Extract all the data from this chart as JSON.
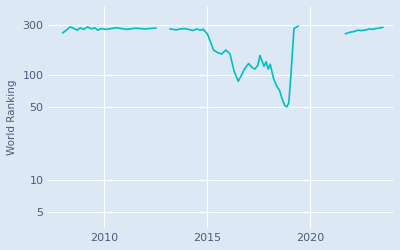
{
  "ylabel": "World Ranking",
  "background_color": "#dce9f5",
  "line_color": "#00bfbf",
  "line_width": 1.2,
  "yticks": [
    5,
    10,
    50,
    100,
    300
  ],
  "xtick_labels": [
    "2010",
    "2015",
    "2020"
  ],
  "xtick_positions": [
    2010,
    2015,
    2020
  ],
  "xlim": [
    2007.3,
    2024.0
  ],
  "ylim_log": [
    3.5,
    450
  ],
  "segments": [
    {
      "x": [
        2008.0,
        2008.15,
        2008.35,
        2008.55,
        2008.7,
        2008.85,
        2009.0,
        2009.2,
        2009.4,
        2009.55,
        2009.7,
        2009.85,
        2010.1,
        2010.6,
        2011.1,
        2011.5,
        2012.0,
        2012.5
      ],
      "y": [
        255,
        268,
        290,
        280,
        270,
        285,
        275,
        290,
        278,
        285,
        270,
        280,
        275,
        285,
        275,
        282,
        278,
        283
      ]
    },
    {
      "x": [
        2013.2,
        2013.5,
        2013.7,
        2013.9,
        2014.1,
        2014.3,
        2014.5,
        2014.65,
        2014.8
      ],
      "y": [
        278,
        272,
        278,
        280,
        275,
        268,
        278,
        270,
        275
      ]
    },
    {
      "x": [
        2014.8,
        2015.0,
        2015.15,
        2015.3,
        2015.5,
        2015.7,
        2015.9,
        2016.1,
        2016.3,
        2016.5,
        2016.65,
        2016.8,
        2017.0,
        2017.15,
        2017.3,
        2017.45,
        2017.55,
        2017.65,
        2017.75,
        2017.85,
        2017.95,
        2018.05,
        2018.2,
        2018.35,
        2018.5,
        2018.65,
        2018.75,
        2018.85,
        2018.95,
        2019.05,
        2019.2,
        2019.4
      ],
      "y": [
        275,
        250,
        210,
        175,
        165,
        160,
        175,
        160,
        110,
        88,
        100,
        115,
        130,
        120,
        115,
        125,
        155,
        138,
        122,
        135,
        115,
        128,
        95,
        80,
        72,
        58,
        52,
        50,
        55,
        100,
        280,
        295
      ]
    },
    {
      "x": [
        2021.7,
        2021.9,
        2022.1,
        2022.3,
        2022.5,
        2022.7,
        2022.85,
        2023.0,
        2023.15,
        2023.3,
        2023.5
      ],
      "y": [
        250,
        258,
        262,
        270,
        268,
        272,
        278,
        275,
        280,
        282,
        288
      ]
    }
  ]
}
